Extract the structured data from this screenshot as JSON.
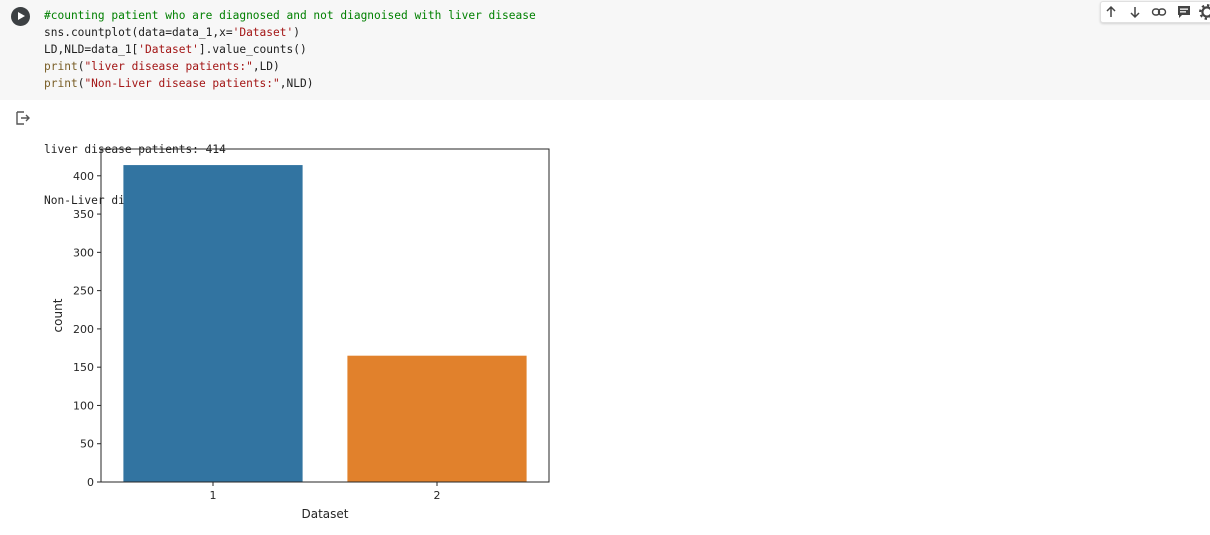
{
  "cell": {
    "code_lines": [
      [
        {
          "t": "#counting patient who are diagnosed and not diagnoised with liver disease",
          "c": "cmt"
        }
      ],
      [
        {
          "t": "sns.countplot(data=data_1,x=",
          "c": ""
        },
        {
          "t": "'Dataset'",
          "c": "str"
        },
        {
          "t": ")",
          "c": ""
        }
      ],
      [
        {
          "t": "LD,NLD=data_1[",
          "c": ""
        },
        {
          "t": "'Dataset'",
          "c": "str"
        },
        {
          "t": "].value_counts()",
          "c": ""
        }
      ],
      [
        {
          "t": "print",
          "c": "fn"
        },
        {
          "t": "(",
          "c": ""
        },
        {
          "t": "\"liver disease patients:\"",
          "c": "str"
        },
        {
          "t": ",LD)",
          "c": ""
        }
      ],
      [
        {
          "t": "print",
          "c": "fn"
        },
        {
          "t": "(",
          "c": ""
        },
        {
          "t": "\"Non-Liver disease patients:\"",
          "c": "str"
        },
        {
          "t": ",NLD)",
          "c": ""
        }
      ]
    ]
  },
  "output": {
    "lines": [
      "liver disease patients: 414",
      "Non-Liver disease patients: 165"
    ]
  },
  "icons": {
    "run": "play-icon",
    "output": "output-arrow-icon",
    "toolbar": [
      "arrow-up-icon",
      "arrow-down-icon",
      "link-icon",
      "comment-icon",
      "gear-icon"
    ]
  },
  "chart_data": {
    "type": "bar",
    "categories": [
      "1",
      "2"
    ],
    "values": [
      414,
      165
    ],
    "colors": [
      "#3274a1",
      "#e1812c"
    ],
    "title": "",
    "xlabel": "Dataset",
    "ylabel": "count",
    "ylim": [
      0,
      435
    ],
    "yticks": [
      0,
      50,
      100,
      150,
      200,
      250,
      300,
      350,
      400
    ],
    "grid": false
  }
}
